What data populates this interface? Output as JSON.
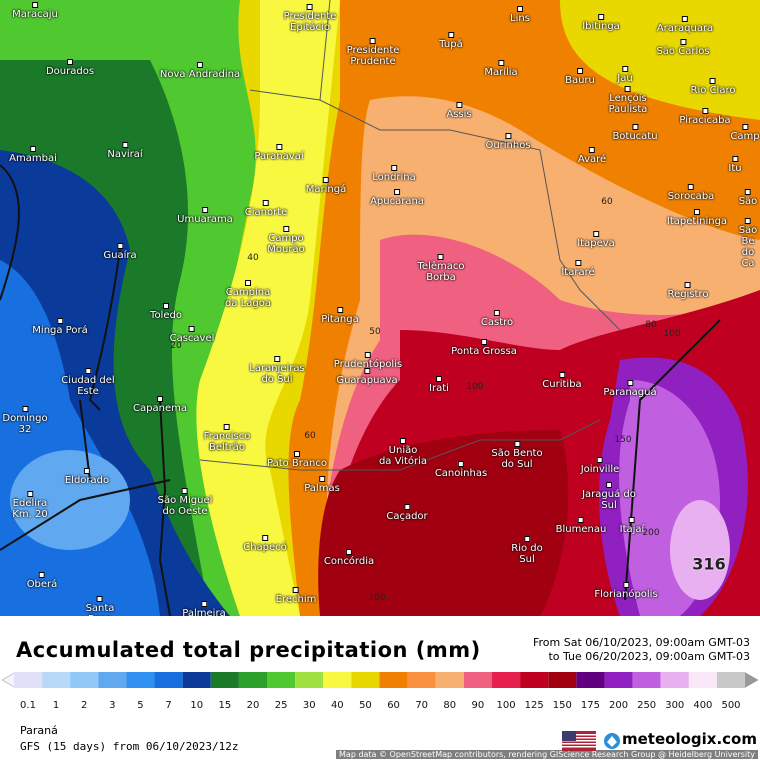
{
  "map": {
    "cities": [
      "Maracaju",
      "Dourados",
      "Nova Andradina",
      "Presidente\nEpitácio",
      "Presidente\nPrudente",
      "Tupã",
      "Lins",
      "Ibitinga",
      "Araraquara",
      "São Carlos",
      "Marília",
      "Bauru",
      "Jaú",
      "Lençóis\nPaulista",
      "Rio Claro",
      "Assis",
      "Piracicaba",
      "Botucatu",
      "Camp",
      "Ourinhos",
      "Amambai",
      "Naviraí",
      "Paranavaí",
      "Avaré",
      "Itu",
      "Maringá",
      "Londrina",
      "Sorocaba",
      "São",
      "Apucarana",
      "Cianorte",
      "Umuarama",
      "Itapetininga",
      "Campo\nMourão",
      "São Be\ndo Ca",
      "Itapeva",
      "Guaíra",
      "Telêmaco\nBorba",
      "Itararé",
      "Campina\nda Lagoa",
      "Registro",
      "Toledo",
      "Pitanga",
      "Castro",
      "Minga Porá",
      "Cascavel",
      "Ponta Grossa",
      "Laranjeiras\ndo Sul",
      "Prudentópolis",
      "Guarapuava",
      "Ciudad del\nEste",
      "Curitiba",
      "Irati",
      "Paranaguá",
      "Capanema",
      "Domingo\n32",
      "Francisco\nBeltrão",
      "União\nda Vitória",
      "São Bento\ndo Sul",
      "Pato Branco",
      "Canoinhas",
      "Joinville",
      "Eldorado",
      "Palmas",
      "Jaraguá do\nSul",
      "Edelira\nKm. 20",
      "São Miguel\ndo Oeste",
      "Caçador",
      "Blumenau",
      "Itajaí",
      "Rio do\nSul",
      "Chapecó",
      "Concórdia",
      "Oberá",
      "Florianópolis",
      "Erechim",
      "Palmeira",
      "Santa\nRosa"
    ],
    "contour_labels": [
      "40",
      "60",
      "80",
      "100",
      "20",
      "50",
      "60",
      "100",
      "150",
      "200",
      "316",
      "100"
    ],
    "attribution": "Map data © OpenStreetMap contributors, rendering GIScience Research Group @ Heidelberg University"
  },
  "legend": {
    "title": "Accumulated total precipitation (mm)",
    "from": "From Sat 06/10/2023, 09:00am GMT-03",
    "to": "to Tue 06/20/2023, 09:00am GMT-03",
    "levels": [
      0.1,
      1,
      2,
      3,
      5,
      7,
      10,
      15,
      20,
      25,
      30,
      40,
      50,
      60,
      70,
      80,
      90,
      100,
      125,
      150,
      175,
      200,
      250,
      300,
      400,
      500
    ],
    "colors": [
      "#e0e0f8",
      "#b8d8f8",
      "#90c8f8",
      "#60a8f0",
      "#3090f0",
      "#1870e0",
      "#0a3a9a",
      "#1a7a2a",
      "#2aa02a",
      "#50c830",
      "#a0e040",
      "#f8f840",
      "#e8d800",
      "#f08000",
      "#f89040",
      "#f8b070",
      "#f06080",
      "#e82050",
      "#c00020",
      "#a00010",
      "#600080",
      "#9020c0",
      "#c060e0",
      "#e8b0f0",
      "#f8e8f8",
      "#c8c8c8"
    ]
  },
  "footer": {
    "region": "Paraná",
    "model": "GFS (15 days) from 06/10/2023/12z",
    "brand": "meteologix.com"
  }
}
